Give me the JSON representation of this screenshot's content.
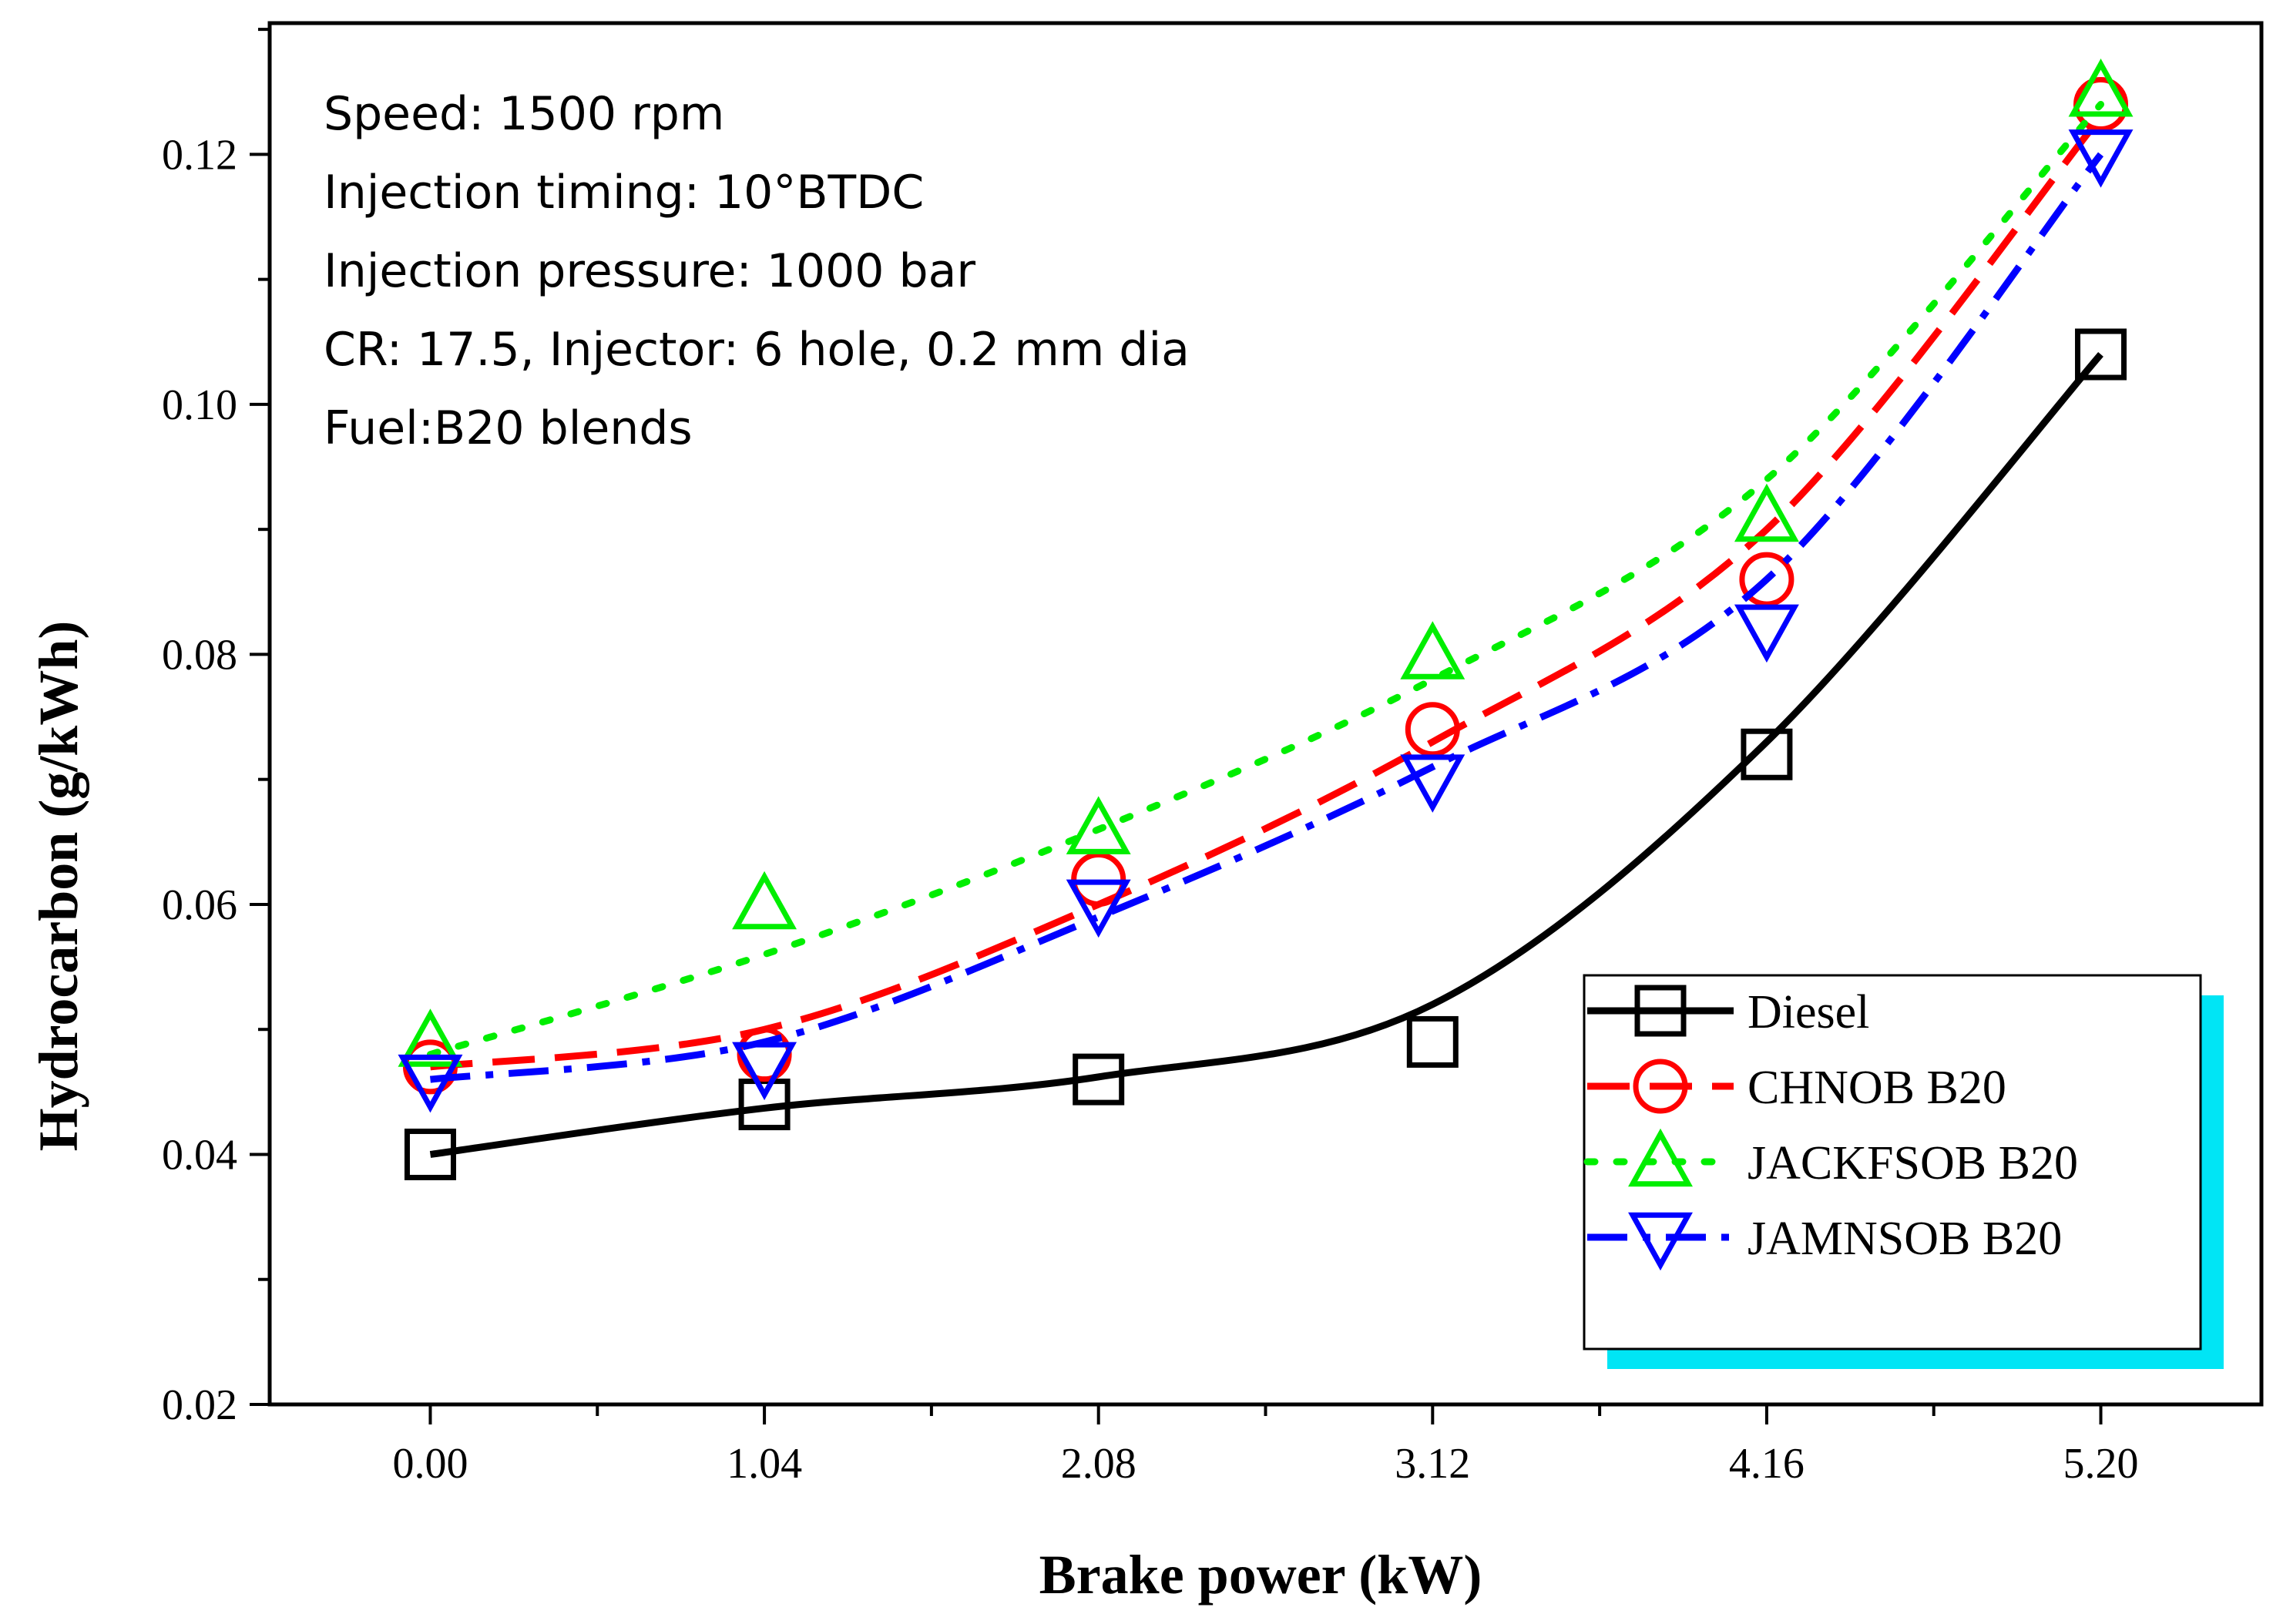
{
  "chart_data": {
    "type": "line",
    "title": "",
    "xlabel": "Brake power (kW)",
    "ylabel": "Hydrocarbon (g/kWh)",
    "x": [
      0.0,
      1.04,
      2.08,
      3.12,
      4.16,
      5.2
    ],
    "x_tick_labels": [
      "0.00",
      "1.04",
      "2.08",
      "3.12",
      "4.16",
      "5.20"
    ],
    "xlim": [
      -0.5,
      5.7
    ],
    "ylim": [
      0.02,
      0.1305
    ],
    "y_ticks": [
      0.02,
      0.04,
      0.06,
      0.08,
      0.1,
      0.12
    ],
    "y_tick_labels": [
      "0.02",
      "0.04",
      "0.06",
      "0.08",
      "0.10",
      "0.12"
    ],
    "grid": false,
    "legend_position": "bottom-right",
    "annotations": [
      "Speed: 1500 rpm",
      "Injection timing: 10°BTDC",
      "Injection pressure: 1000 bar",
      "CR: 17.5, Injector: 6 hole, 0.2 mm dia",
      "Fuel:B20 blends"
    ],
    "series": [
      {
        "name": "Diesel",
        "color": "#000000",
        "marker": "square",
        "line_style": "solid",
        "values": [
          0.04,
          0.044,
          0.046,
          0.049,
          0.072,
          0.104
        ],
        "fit": [
          0.04,
          0.0437,
          0.0462,
          0.052,
          0.073,
          0.104
        ]
      },
      {
        "name": "CHNOB B20",
        "color": "#ff0000",
        "marker": "circle",
        "line_style": "dash",
        "values": [
          0.047,
          0.048,
          0.062,
          0.074,
          0.086,
          0.124
        ],
        "fit": [
          0.047,
          0.05,
          0.06,
          0.073,
          0.09,
          0.123
        ]
      },
      {
        "name": "JACKFSOB B20",
        "color": "#00ee00",
        "marker": "triangle-up",
        "line_style": "dot",
        "values": [
          0.049,
          0.06,
          0.066,
          0.08,
          0.091,
          0.125
        ],
        "fit": [
          0.048,
          0.056,
          0.066,
          0.078,
          0.094,
          0.124
        ]
      },
      {
        "name": "JAMNSOB B20",
        "color": "#0000ff",
        "marker": "triangle-down",
        "line_style": "dashdot",
        "values": [
          0.046,
          0.047,
          0.06,
          0.07,
          0.082,
          0.12
        ],
        "fit": [
          0.046,
          0.049,
          0.059,
          0.071,
          0.086,
          0.12
        ]
      }
    ]
  },
  "colors": {
    "legend_shadow": "#00e5f5",
    "axis": "#000000"
  }
}
